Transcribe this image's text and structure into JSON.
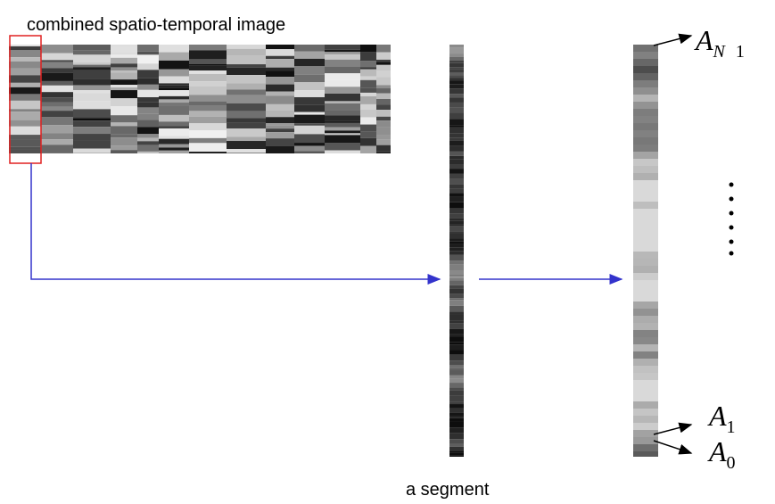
{
  "header": {
    "title": "combined spatio-temporal image"
  },
  "segment_caption": "a segment",
  "labels": [
    {
      "base": "A",
      "sub": "N",
      "after": "1"
    },
    {
      "base": "A",
      "sub": "1"
    },
    {
      "base": "A",
      "sub": "0"
    }
  ]
}
